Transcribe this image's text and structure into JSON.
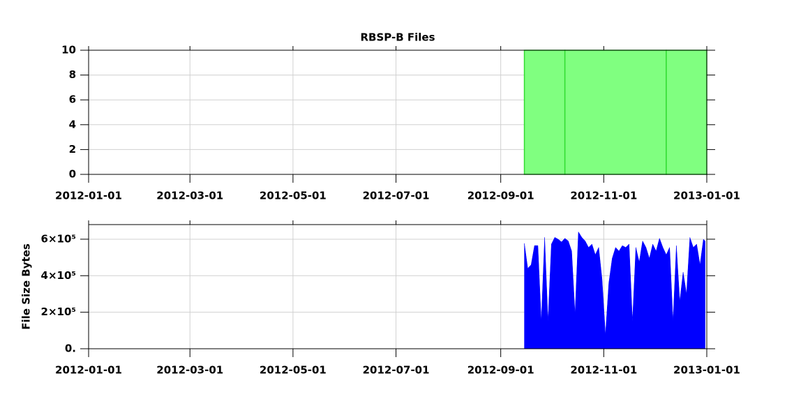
{
  "chart_data": [
    {
      "type": "histogram",
      "title": "RBSP-B Files",
      "bins": [
        "2012-09-15",
        "2012-10-09",
        "2012-12-08",
        "2013-01-01"
      ],
      "values": [
        10,
        10,
        10
      ],
      "color": "#80ff80",
      "edge_color": "#33dd33",
      "xlim": [
        "2012-01-01",
        "2013-01-01"
      ],
      "xticks": [
        "2012-01-01",
        "2012-03-01",
        "2012-05-01",
        "2012-07-01",
        "2012-09-01",
        "2012-11-01",
        "2013-01-01"
      ],
      "ylim": [
        0,
        10
      ],
      "yticks": [
        0,
        2,
        4,
        6,
        8,
        10
      ],
      "grid": true
    },
    {
      "type": "area",
      "ylabel": "File Size Bytes",
      "color": "#0000ff",
      "x": [
        "2012-09-15",
        "2012-09-17",
        "2012-09-19",
        "2012-09-21",
        "2012-09-23",
        "2012-09-25",
        "2012-09-27",
        "2012-09-29",
        "2012-10-01",
        "2012-10-03",
        "2012-10-05",
        "2012-10-07",
        "2012-10-09",
        "2012-10-11",
        "2012-10-13",
        "2012-10-15",
        "2012-10-17",
        "2012-10-19",
        "2012-10-21",
        "2012-10-23",
        "2012-10-25",
        "2012-10-27",
        "2012-10-29",
        "2012-10-31",
        "2012-11-02",
        "2012-11-04",
        "2012-11-06",
        "2012-11-08",
        "2012-11-10",
        "2012-11-12",
        "2012-11-14",
        "2012-11-16",
        "2012-11-18",
        "2012-11-20",
        "2012-11-22",
        "2012-11-24",
        "2012-11-26",
        "2012-11-28",
        "2012-11-30",
        "2012-12-02",
        "2012-12-04",
        "2012-12-06",
        "2012-12-08",
        "2012-12-10",
        "2012-12-12",
        "2012-12-14",
        "2012-12-16",
        "2012-12-18",
        "2012-12-20",
        "2012-12-22",
        "2012-12-24",
        "2012-12-26",
        "2012-12-28",
        "2012-12-30",
        "2012-12-31"
      ],
      "values": [
        577000,
        440000,
        460000,
        565000,
        565000,
        150000,
        610000,
        150000,
        573000,
        610000,
        600000,
        585000,
        605000,
        590000,
        535000,
        190000,
        640000,
        610000,
        590000,
        555000,
        573000,
        515000,
        555000,
        380000,
        76000,
        360000,
        495000,
        555000,
        535000,
        565000,
        555000,
        573000,
        150000,
        555000,
        475000,
        590000,
        555000,
        495000,
        573000,
        535000,
        605000,
        555000,
        515000,
        555000,
        150000,
        565000,
        260000,
        420000,
        300000,
        610000,
        555000,
        573000,
        460000,
        600000,
        590000
      ],
      "xlim": [
        "2012-01-01",
        "2013-01-01"
      ],
      "xticks": [
        "2012-01-01",
        "2012-03-01",
        "2012-05-01",
        "2012-07-01",
        "2012-09-01",
        "2012-11-01",
        "2013-01-01"
      ],
      "ylim": [
        0,
        680000
      ],
      "yticks": [
        {
          "value": 0,
          "label": "0."
        },
        {
          "value": 200000,
          "label": "2×10⁵"
        },
        {
          "value": 400000,
          "label": "4×10⁵"
        },
        {
          "value": 600000,
          "label": "6×10⁵"
        }
      ],
      "grid": true
    }
  ]
}
